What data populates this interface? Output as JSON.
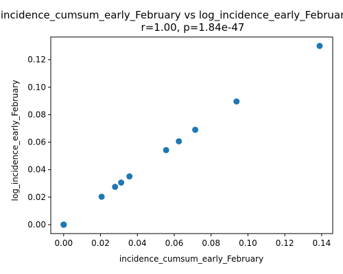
{
  "chart_data": {
    "type": "scatter",
    "title": "incidence_cumsum_early_February vs log_incidence_early_February",
    "subtitle": "r=1.00, p=1.84e-47",
    "xlabel": "incidence_cumsum_early_February",
    "ylabel": "log_incidence_early_February",
    "xlim": [
      -0.007,
      0.146
    ],
    "ylim": [
      -0.0065,
      0.1365
    ],
    "xticks": [
      0.0,
      0.02,
      0.04,
      0.06,
      0.08,
      0.1,
      0.12,
      0.14
    ],
    "xtick_labels": [
      "0.00",
      "0.02",
      "0.04",
      "0.06",
      "0.08",
      "0.10",
      "0.12",
      "0.14"
    ],
    "yticks": [
      0.0,
      0.02,
      0.04,
      0.06,
      0.08,
      0.1,
      0.12
    ],
    "ytick_labels": [
      "0.00",
      "0.02",
      "0.04",
      "0.06",
      "0.08",
      "0.10",
      "0.12"
    ],
    "grid": false,
    "marker_color": "#1f77b4",
    "series": [
      {
        "points": [
          {
            "x": 0.0,
            "y": 0.0
          },
          {
            "x": 0.0,
            "y": 0.0
          },
          {
            "x": 0.0,
            "y": 0.0
          },
          {
            "x": 0.0,
            "y": 0.0
          },
          {
            "x": 0.0,
            "y": 0.0
          },
          {
            "x": 0.0206,
            "y": 0.0203
          },
          {
            "x": 0.0279,
            "y": 0.0275
          },
          {
            "x": 0.0312,
            "y": 0.0306
          },
          {
            "x": 0.0357,
            "y": 0.0351
          },
          {
            "x": 0.0556,
            "y": 0.0542
          },
          {
            "x": 0.0625,
            "y": 0.0606
          },
          {
            "x": 0.0714,
            "y": 0.069
          },
          {
            "x": 0.0938,
            "y": 0.0896
          },
          {
            "x": 0.1389,
            "y": 0.13
          }
        ]
      }
    ]
  }
}
